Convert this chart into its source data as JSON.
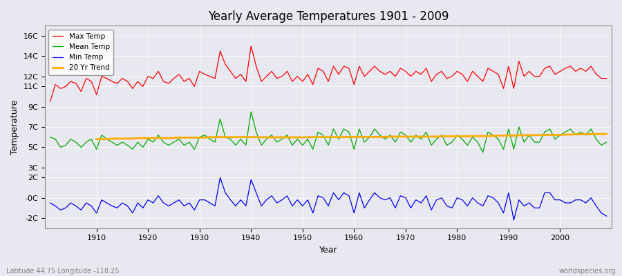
{
  "title": "Yearly Average Temperatures 1901 - 2009",
  "xlabel": "Year",
  "ylabel": "Temperature",
  "subtitle_left": "Latitude 44.75 Longitude -118.25",
  "subtitle_right": "worldspecies.org",
  "years": [
    1901,
    1902,
    1903,
    1904,
    1905,
    1906,
    1907,
    1908,
    1909,
    1910,
    1911,
    1912,
    1913,
    1914,
    1915,
    1916,
    1917,
    1918,
    1919,
    1920,
    1921,
    1922,
    1923,
    1924,
    1925,
    1926,
    1927,
    1928,
    1929,
    1930,
    1931,
    1932,
    1933,
    1934,
    1935,
    1936,
    1937,
    1938,
    1939,
    1940,
    1941,
    1942,
    1943,
    1944,
    1945,
    1946,
    1947,
    1948,
    1949,
    1950,
    1951,
    1952,
    1953,
    1954,
    1955,
    1956,
    1957,
    1958,
    1959,
    1960,
    1961,
    1962,
    1963,
    1964,
    1965,
    1966,
    1967,
    1968,
    1969,
    1970,
    1971,
    1972,
    1973,
    1974,
    1975,
    1976,
    1977,
    1978,
    1979,
    1980,
    1981,
    1982,
    1983,
    1984,
    1985,
    1986,
    1987,
    1988,
    1989,
    1990,
    1991,
    1992,
    1993,
    1994,
    1995,
    1996,
    1997,
    1998,
    1999,
    2000,
    2001,
    2002,
    2003,
    2004,
    2005,
    2006,
    2007,
    2008,
    2009
  ],
  "max_temp": [
    9.5,
    11.2,
    10.8,
    11.0,
    11.5,
    11.3,
    10.5,
    11.8,
    11.5,
    10.2,
    12.0,
    11.8,
    11.5,
    11.3,
    11.8,
    11.5,
    10.8,
    11.5,
    11.0,
    12.0,
    11.8,
    12.5,
    11.5,
    11.3,
    11.8,
    12.2,
    11.5,
    11.8,
    11.0,
    12.5,
    12.2,
    12.0,
    11.8,
    14.5,
    13.2,
    12.5,
    11.8,
    12.2,
    11.5,
    15.0,
    13.0,
    11.5,
    12.0,
    12.5,
    11.8,
    12.0,
    12.5,
    11.5,
    12.0,
    11.5,
    12.2,
    11.2,
    12.8,
    12.5,
    11.5,
    13.0,
    12.2,
    13.0,
    12.8,
    11.2,
    13.0,
    12.0,
    12.5,
    13.0,
    12.5,
    12.2,
    12.5,
    12.0,
    12.8,
    12.5,
    12.0,
    12.5,
    12.2,
    12.8,
    11.5,
    12.2,
    12.5,
    11.8,
    12.0,
    12.5,
    12.2,
    11.5,
    12.5,
    12.0,
    11.5,
    12.8,
    12.5,
    12.2,
    10.8,
    13.0,
    10.8,
    13.5,
    12.0,
    12.5,
    12.0,
    12.0,
    12.8,
    13.0,
    12.2,
    12.5,
    12.8,
    13.0,
    12.5,
    12.8,
    12.5,
    13.0,
    12.2,
    11.8,
    11.8
  ],
  "mean_temp": [
    6.0,
    5.8,
    5.0,
    5.2,
    5.8,
    5.5,
    5.0,
    5.5,
    5.8,
    4.8,
    6.2,
    5.8,
    5.5,
    5.2,
    5.5,
    5.2,
    4.8,
    5.5,
    5.0,
    5.8,
    5.5,
    6.2,
    5.5,
    5.2,
    5.5,
    5.8,
    5.2,
    5.5,
    4.8,
    6.0,
    6.2,
    5.8,
    5.5,
    7.8,
    6.0,
    5.8,
    5.2,
    5.8,
    5.2,
    8.5,
    6.5,
    5.2,
    5.8,
    6.2,
    5.5,
    5.8,
    6.2,
    5.2,
    5.8,
    5.2,
    5.8,
    4.8,
    6.5,
    6.2,
    5.2,
    6.8,
    5.8,
    6.8,
    6.5,
    4.8,
    6.8,
    5.5,
    6.0,
    6.8,
    6.2,
    5.8,
    6.2,
    5.5,
    6.5,
    6.2,
    5.5,
    6.2,
    5.8,
    6.5,
    5.2,
    5.8,
    6.2,
    5.2,
    5.5,
    6.2,
    5.8,
    5.2,
    6.0,
    5.5,
    4.5,
    6.5,
    6.2,
    5.8,
    4.8,
    6.8,
    4.8,
    7.0,
    5.5,
    6.2,
    5.5,
    5.5,
    6.5,
    6.8,
    5.8,
    6.2,
    6.5,
    6.8,
    6.2,
    6.5,
    6.2,
    6.8,
    5.8,
    5.2,
    5.5
  ],
  "min_temp": [
    -0.5,
    -0.8,
    -1.2,
    -1.0,
    -0.5,
    -0.8,
    -1.2,
    -0.5,
    -0.8,
    -1.5,
    -0.2,
    -0.5,
    -0.8,
    -1.0,
    -0.5,
    -0.8,
    -1.5,
    -0.5,
    -1.0,
    -0.2,
    -0.5,
    0.2,
    -0.5,
    -0.8,
    -0.5,
    -0.2,
    -0.8,
    -0.5,
    -1.2,
    -0.2,
    -0.2,
    -0.5,
    -0.8,
    2.0,
    0.5,
    -0.2,
    -0.8,
    -0.2,
    -0.8,
    1.8,
    0.5,
    -0.8,
    -0.2,
    0.2,
    -0.5,
    -0.2,
    0.2,
    -0.8,
    -0.2,
    -0.8,
    -0.2,
    -1.5,
    0.2,
    0.0,
    -0.8,
    0.5,
    -0.2,
    0.5,
    0.2,
    -1.5,
    0.5,
    -1.0,
    -0.2,
    0.5,
    0.0,
    -0.2,
    0.0,
    -1.0,
    0.2,
    0.0,
    -1.0,
    -0.2,
    -0.5,
    0.2,
    -1.2,
    -0.2,
    0.0,
    -0.8,
    -1.0,
    0.0,
    -0.2,
    -0.8,
    0.0,
    -0.5,
    -0.8,
    0.2,
    0.0,
    -0.5,
    -1.5,
    0.5,
    -2.2,
    -0.2,
    -0.8,
    -0.5,
    -1.0,
    -1.0,
    0.5,
    0.5,
    -0.2,
    -0.2,
    -0.5,
    -0.5,
    -0.2,
    -0.2,
    -0.5,
    0.0,
    -0.8,
    -1.5,
    -1.8
  ],
  "trend_years": [
    1910,
    1911,
    1912,
    1913,
    1914,
    1915,
    1916,
    1917,
    1918,
    1919,
    1920,
    1921,
    1922,
    1923,
    1924,
    1925,
    1926,
    1927,
    1928,
    1929,
    1930,
    1931,
    1932,
    1933,
    1934,
    1935,
    1936,
    1937,
    1938,
    1939,
    1940,
    1941,
    1942,
    1943,
    1944,
    1945,
    1946,
    1947,
    1948,
    1949,
    1950,
    1951,
    1952,
    1953,
    1954,
    1955,
    1956,
    1957,
    1958,
    1959,
    1960,
    1961,
    1962,
    1963,
    1964,
    1965,
    1966,
    1967,
    1968,
    1969,
    1970,
    1971,
    1972,
    1973,
    1974,
    1975,
    1976,
    1977,
    1978,
    1979,
    1980,
    1981,
    1982,
    1983,
    1984,
    1985,
    1986,
    1987,
    1988,
    1989,
    1990,
    1991,
    1992,
    1993,
    1994,
    1995,
    1996,
    1997,
    1998,
    1999,
    2000,
    2001,
    2002,
    2003,
    2004,
    2005,
    2006,
    2007,
    2008,
    2009
  ],
  "trend_vals": [
    5.8,
    5.8,
    5.8,
    5.85,
    5.85,
    5.85,
    5.85,
    5.85,
    5.9,
    5.9,
    5.9,
    5.9,
    5.9,
    5.9,
    5.9,
    5.92,
    5.95,
    5.95,
    5.95,
    5.95,
    5.95,
    5.95,
    6.0,
    6.0,
    6.0,
    6.0,
    6.0,
    6.0,
    6.0,
    6.0,
    6.0,
    6.0,
    5.98,
    5.98,
    5.98,
    5.98,
    5.98,
    5.98,
    5.98,
    5.98,
    5.98,
    5.98,
    6.0,
    6.0,
    6.0,
    6.0,
    6.0,
    6.0,
    6.0,
    6.02,
    6.02,
    6.02,
    6.02,
    6.02,
    6.02,
    6.02,
    6.02,
    6.05,
    6.05,
    6.05,
    6.05,
    6.05,
    6.05,
    6.05,
    6.05,
    6.05,
    6.05,
    6.08,
    6.08,
    6.08,
    6.08,
    6.08,
    6.08,
    6.1,
    6.1,
    6.1,
    6.1,
    6.12,
    6.15,
    6.15,
    6.15,
    6.15,
    6.18,
    6.18,
    6.2,
    6.2,
    6.2,
    6.22,
    6.22,
    6.22,
    6.22,
    6.25,
    6.25,
    6.28,
    6.28,
    6.28,
    6.3,
    6.3,
    6.3,
    6.3
  ],
  "max_color": "#ff0000",
  "mean_color": "#00aa00",
  "min_color": "#0000ff",
  "trend_color": "#ffaa00",
  "bg_color": "#e8e8f0",
  "plot_bg_color": "#e8e8f0",
  "yticks": [
    -2,
    0,
    2,
    3,
    5,
    7,
    9,
    11,
    12,
    14,
    16
  ],
  "ytick_labels": [
    "-2C",
    "-0C",
    "2C",
    "3C",
    "5C",
    "7C",
    "9C",
    "11C",
    "12C",
    "14C",
    "16C"
  ],
  "ylim": [
    -3,
    17
  ],
  "xlim": [
    1900,
    2010
  ]
}
